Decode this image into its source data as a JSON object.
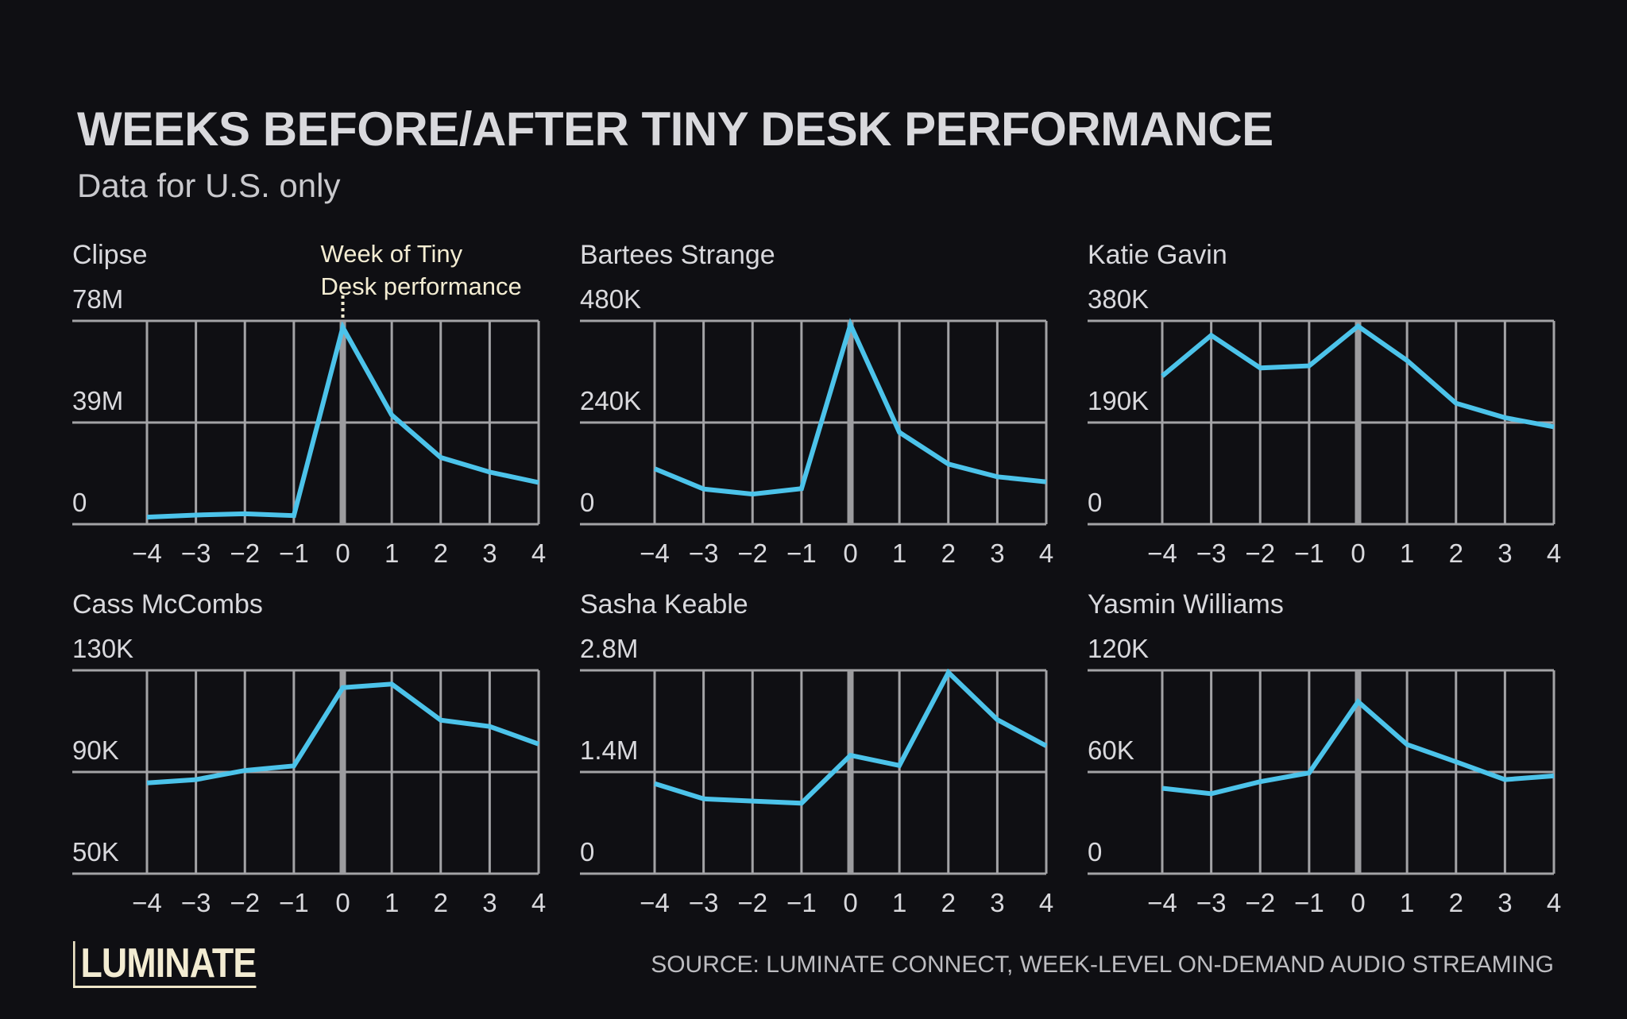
{
  "title": "WEEKS BEFORE/AFTER TINY DESK PERFORMANCE",
  "subtitle": "Data for U.S. only",
  "annotation": [
    "Week of Tiny",
    "Desk performance"
  ],
  "source": "SOURCE: LUMINATE CONNECT, WEEK-LEVEL ON-DEMAND AUDIO STREAMING",
  "logo": "LUMINATE",
  "colors": {
    "background": "#0f0f13",
    "line": "#4cc3ea",
    "grid": "#a3a3a6",
    "text": "#d9d9dd",
    "annotation": "#f3ecd2"
  },
  "chart_data": [
    {
      "type": "line",
      "title": "Clipse",
      "x": [
        -4,
        -3,
        -2,
        -1,
        0,
        1,
        2,
        3,
        4
      ],
      "x_tick_labels": [
        "−4",
        "−3",
        "−2",
        "−1",
        "0",
        "1",
        "2",
        "3",
        "4"
      ],
      "ylim": [
        0,
        78000000
      ],
      "y_tick_labels": [
        "0",
        "39M",
        "78M"
      ],
      "values": [
        2700000,
        3500000,
        4000000,
        3300000,
        75500000,
        41900000,
        25600000,
        20000000,
        16000000
      ],
      "grid": true
    },
    {
      "type": "line",
      "title": "Bartees Strange",
      "x": [
        -4,
        -3,
        -2,
        -1,
        0,
        1,
        2,
        3,
        4
      ],
      "x_tick_labels": [
        "−4",
        "−3",
        "−2",
        "−1",
        "0",
        "1",
        "2",
        "3",
        "4"
      ],
      "ylim": [
        0,
        480000
      ],
      "y_tick_labels": [
        "0",
        "240K",
        "480K"
      ],
      "values": [
        131000,
        83000,
        71000,
        84000,
        471000,
        217000,
        142000,
        112000,
        100000
      ],
      "grid": true
    },
    {
      "type": "line",
      "title": "Katie Gavin",
      "x": [
        -4,
        -3,
        -2,
        -1,
        0,
        1,
        2,
        3,
        4
      ],
      "x_tick_labels": [
        "−4",
        "−3",
        "−2",
        "−1",
        "0",
        "1",
        "2",
        "3",
        "4"
      ],
      "ylim": [
        0,
        380000
      ],
      "y_tick_labels": [
        "0",
        "190K",
        "380K"
      ],
      "values": [
        277000,
        353000,
        292000,
        296000,
        370000,
        306000,
        226000,
        199000,
        182000
      ],
      "grid": true
    },
    {
      "type": "line",
      "title": "Cass McCombs",
      "x": [
        -4,
        -3,
        -2,
        -1,
        0,
        1,
        2,
        3,
        4
      ],
      "x_tick_labels": [
        "−4",
        "−3",
        "−2",
        "−1",
        "0",
        "1",
        "2",
        "3",
        "4"
      ],
      "ylim": [
        50000,
        130000
      ],
      "y_tick_labels": [
        "50K",
        "90K",
        "130K"
      ],
      "values": [
        85700,
        87000,
        90600,
        92400,
        123200,
        124600,
        110400,
        107900,
        101000
      ],
      "grid": true
    },
    {
      "type": "line",
      "title": "Sasha Keable",
      "x": [
        -4,
        -3,
        -2,
        -1,
        0,
        1,
        2,
        3,
        4
      ],
      "x_tick_labels": [
        "−4",
        "−3",
        "−2",
        "−1",
        "0",
        "1",
        "2",
        "3",
        "4"
      ],
      "ylim": [
        0,
        2800000
      ],
      "y_tick_labels": [
        "0",
        "1.4M",
        "2.8M"
      ],
      "values": [
        1240000,
        1030000,
        1000000,
        970000,
        1630000,
        1490000,
        2770000,
        2120000,
        1760000
      ],
      "grid": true
    },
    {
      "type": "line",
      "title": "Yasmin Williams",
      "x": [
        -4,
        -3,
        -2,
        -1,
        0,
        1,
        2,
        3,
        4
      ],
      "x_tick_labels": [
        "−4",
        "−3",
        "−2",
        "−1",
        "0",
        "1",
        "2",
        "3",
        "4"
      ],
      "ylim": [
        0,
        120000
      ],
      "y_tick_labels": [
        "0",
        "60K",
        "120K"
      ],
      "values": [
        50400,
        47200,
        54300,
        59500,
        101500,
        76200,
        66000,
        55500,
        57700
      ],
      "grid": true
    }
  ]
}
